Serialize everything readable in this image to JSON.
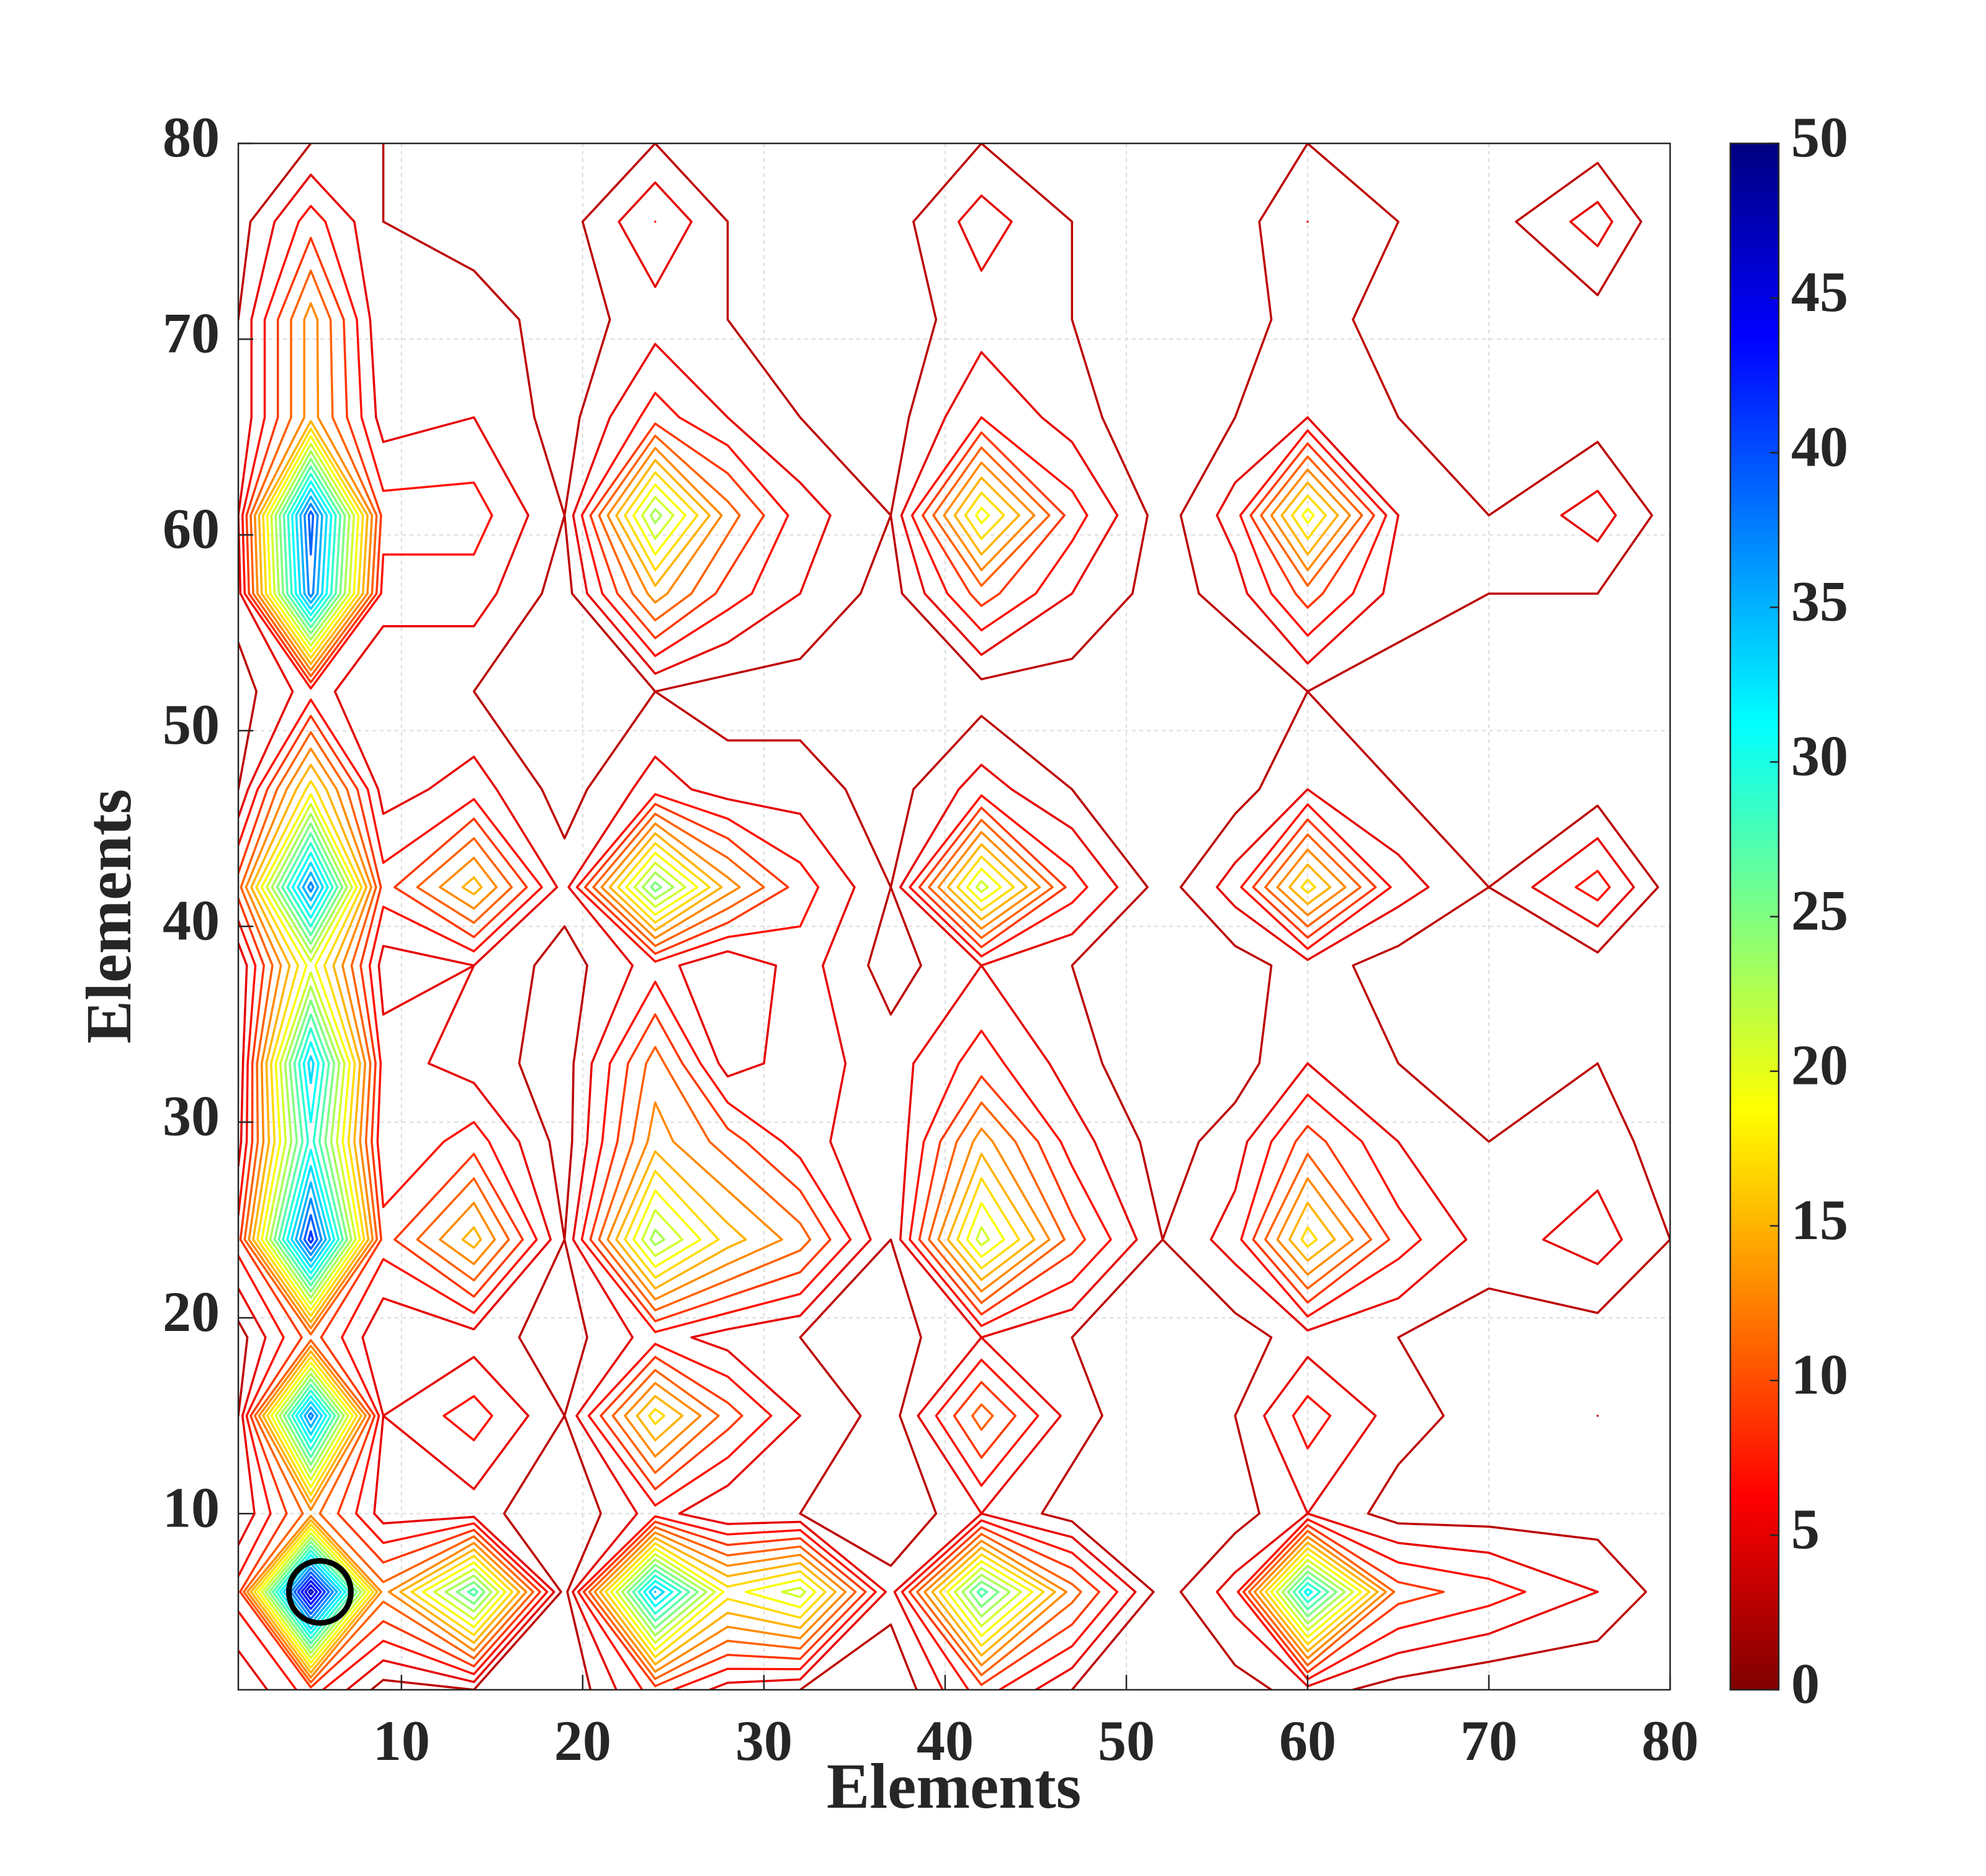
{
  "chart_data": {
    "type": "contour",
    "xlabel": "Elements",
    "ylabel": "Elements",
    "xlim": [
      1,
      80
    ],
    "ylim": [
      1,
      80
    ],
    "xticks": [
      10,
      20,
      30,
      40,
      50,
      60,
      70,
      80
    ],
    "yticks": [
      10,
      20,
      30,
      40,
      50,
      60,
      70,
      80
    ],
    "grid": true,
    "x": [
      1,
      5,
      9,
      14,
      19,
      24,
      28,
      32,
      37,
      42,
      47,
      52,
      56,
      60,
      65,
      70,
      76,
      80
    ],
    "y": [
      1,
      6,
      10,
      15,
      19,
      24,
      29,
      33,
      38,
      42,
      47,
      52,
      57,
      61,
      66,
      71,
      76,
      80
    ],
    "z": [
      [
        3,
        8,
        2,
        3,
        1,
        8,
        4,
        3,
        1,
        8,
        3,
        1,
        2,
        4,
        2,
        1,
        1,
        1
      ],
      [
        8,
        48,
        12,
        28,
        2,
        35,
        18,
        22,
        4,
        28,
        12,
        2,
        6,
        32,
        10,
        8,
        5,
        2
      ],
      [
        3,
        12,
        4,
        4,
        1,
        6,
        3,
        3,
        1,
        5,
        2,
        1,
        2,
        5,
        2,
        2,
        2,
        1
      ],
      [
        3,
        38,
        5,
        8,
        3,
        18,
        10,
        5,
        2,
        12,
        4,
        1,
        3,
        8,
        4,
        2,
        3,
        1
      ],
      [
        2,
        10,
        3,
        4,
        2,
        6,
        4,
        3,
        2,
        5,
        3,
        1,
        2,
        4,
        3,
        2,
        2,
        1
      ],
      [
        8,
        42,
        8,
        16,
        3,
        24,
        16,
        12,
        3,
        22,
        10,
        3,
        6,
        18,
        8,
        4,
        6,
        3
      ],
      [
        4,
        30,
        5,
        8,
        2,
        14,
        10,
        6,
        3,
        14,
        6,
        2,
        4,
        10,
        5,
        3,
        4,
        2
      ],
      [
        3,
        34,
        6,
        4,
        2,
        12,
        4,
        6,
        4,
        8,
        4,
        1,
        2,
        5,
        3,
        2,
        3,
        1
      ],
      [
        3,
        20,
        4,
        5,
        2,
        6,
        3,
        6,
        2,
        5,
        3,
        1,
        2,
        4,
        2,
        2,
        2,
        1
      ],
      [
        10,
        38,
        8,
        16,
        4,
        26,
        14,
        8,
        3,
        22,
        8,
        2,
        6,
        18,
        6,
        3,
        8,
        2
      ],
      [
        3,
        18,
        4,
        6,
        2,
        6,
        4,
        4,
        2,
        6,
        3,
        2,
        2,
        5,
        3,
        2,
        2,
        1
      ],
      [
        2,
        6,
        3,
        3,
        1,
        3,
        2,
        2,
        1,
        2,
        2,
        1,
        1,
        3,
        2,
        1,
        1,
        1
      ],
      [
        4,
        38,
        6,
        6,
        2,
        14,
        8,
        5,
        2,
        10,
        5,
        2,
        4,
        10,
        4,
        3,
        3,
        2
      ],
      [
        5,
        40,
        8,
        8,
        3,
        24,
        12,
        6,
        3,
        20,
        8,
        2,
        6,
        20,
        5,
        3,
        6,
        2
      ],
      [
        3,
        14,
        4,
        5,
        2,
        8,
        5,
        3,
        2,
        7,
        4,
        1,
        3,
        5,
        3,
        2,
        2,
        1
      ],
      [
        3,
        14,
        3,
        4,
        2,
        4,
        3,
        2,
        2,
        4,
        3,
        1,
        2,
        4,
        2,
        2,
        2,
        1
      ],
      [
        2,
        8,
        3,
        2,
        2,
        7,
        3,
        2,
        2,
        6,
        3,
        1,
        2,
        5,
        3,
        2,
        6,
        1
      ],
      [
        2,
        3,
        3,
        2,
        1,
        3,
        2,
        1,
        1,
        3,
        2,
        1,
        1,
        3,
        2,
        1,
        2,
        1
      ]
    ],
    "levels": [
      1,
      3,
      5,
      7,
      9,
      11,
      13,
      15,
      17,
      19,
      21,
      23,
      25,
      27,
      29,
      31,
      33,
      35,
      37,
      39,
      41,
      43,
      45,
      47,
      49
    ],
    "clim": [
      0,
      50
    ],
    "cticks": [
      0,
      5,
      10,
      15,
      20,
      25,
      30,
      35,
      40,
      45,
      50
    ],
    "colormap": [
      "#800000",
      "#ff0000",
      "#ff8000",
      "#ffff00",
      "#80ff80",
      "#00ffff",
      "#0080ff",
      "#0000ff",
      "#000080"
    ],
    "highlight": {
      "x": 5.5,
      "y": 6,
      "color": "#000000"
    }
  }
}
